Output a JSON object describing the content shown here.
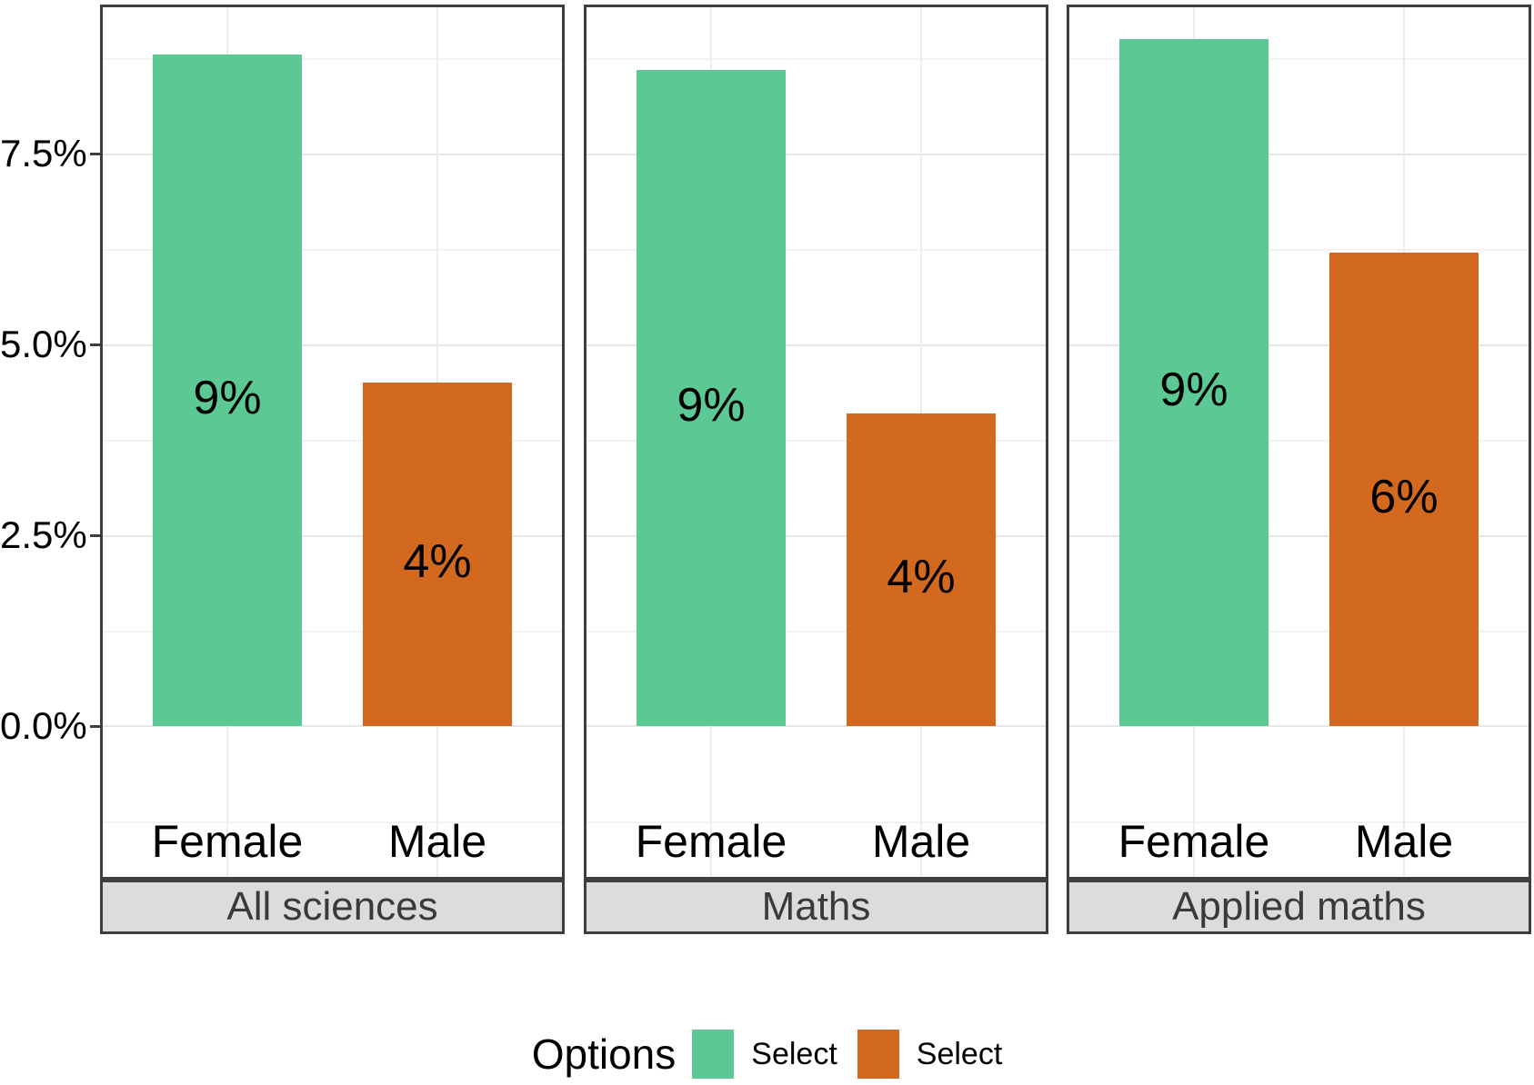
{
  "chart_data": {
    "type": "bar",
    "title": "",
    "categories": [
      "Female",
      "Male"
    ],
    "facets": [
      {
        "label": "All sciences",
        "values": [
          8.8,
          4.5
        ],
        "bar_labels": [
          "9%",
          "4%"
        ]
      },
      {
        "label": "Maths",
        "values": [
          8.6,
          4.1
        ],
        "bar_labels": [
          "9%",
          "4%"
        ]
      },
      {
        "label": "Applied maths",
        "values": [
          9.0,
          6.2
        ],
        "bar_labels": [
          "9%",
          "6%"
        ]
      }
    ],
    "series": [
      {
        "name": "Select",
        "category": "Female",
        "color": "#5CC893"
      },
      {
        "name": "Select",
        "category": "Male",
        "color": "#D2691E"
      }
    ],
    "y_axis": {
      "tick_labels": [
        "0.0%",
        "2.5%",
        "5.0%",
        "7.5%"
      ],
      "tick_values": [
        0,
        2.5,
        5.0,
        7.5
      ],
      "ylim": [
        -2.0,
        9.45
      ],
      "grid": "major and minor horizontal, major vertical at category centers"
    },
    "legend": {
      "title": "Options",
      "position": "bottom",
      "items": [
        {
          "label": "Select",
          "color": "#5CC893"
        },
        {
          "label": "Select",
          "color": "#D2691E"
        }
      ]
    },
    "style": {
      "panel_border_color": "#3E3E3E",
      "strip_background": "#DCDCDC",
      "strip_text_color": "#3A3A3A",
      "major_grid_color": "#E7E7E7",
      "minor_grid_color": "#F3F3F3"
    }
  }
}
